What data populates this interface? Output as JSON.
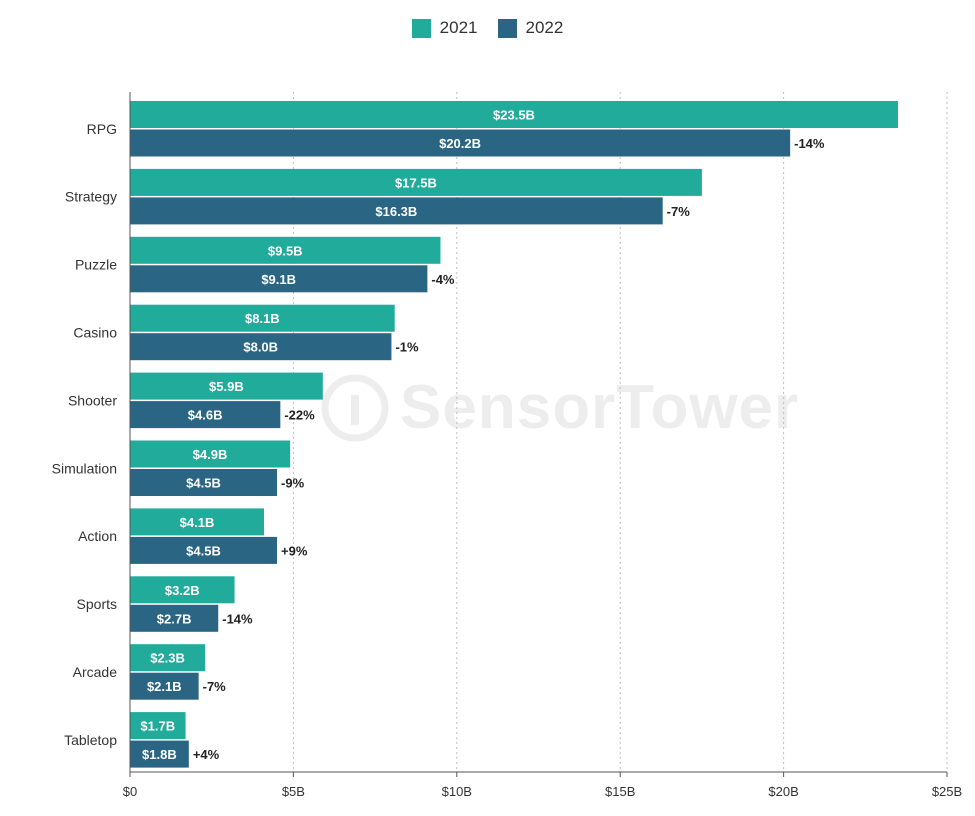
{
  "legend": [
    {
      "label": "2021",
      "color": "#21ab9b"
    },
    {
      "label": "2022",
      "color": "#2a6583"
    }
  ],
  "watermark": "SensorTower",
  "chart_data": {
    "type": "bar",
    "orientation": "horizontal",
    "categories": [
      "RPG",
      "Strategy",
      "Puzzle",
      "Casino",
      "Shooter",
      "Simulation",
      "Action",
      "Sports",
      "Arcade",
      "Tabletop"
    ],
    "series": [
      {
        "name": "2021",
        "color": "#21ab9b",
        "values": [
          23.5,
          17.5,
          9.5,
          8.1,
          5.9,
          4.9,
          4.1,
          3.2,
          2.3,
          1.7
        ],
        "labels": [
          "$23.5B",
          "$17.5B",
          "$9.5B",
          "$8.1B",
          "$5.9B",
          "$4.9B",
          "$4.1B",
          "$3.2B",
          "$2.3B",
          "$1.7B"
        ]
      },
      {
        "name": "2022",
        "color": "#2a6583",
        "values": [
          20.2,
          16.3,
          9.1,
          8.0,
          4.6,
          4.5,
          4.5,
          2.7,
          2.1,
          1.8
        ],
        "labels": [
          "$20.2B",
          "$16.3B",
          "$9.1B",
          "$8.0B",
          "$4.6B",
          "$4.5B",
          "$4.5B",
          "$2.7B",
          "$2.1B",
          "$1.8B"
        ]
      }
    ],
    "change_labels": [
      "-14%",
      "-7%",
      "-4%",
      "-1%",
      "-22%",
      "-9%",
      "+9%",
      "-14%",
      "-7%",
      "+4%"
    ],
    "xlim": [
      0,
      25
    ],
    "xticks": [
      0,
      5,
      10,
      15,
      20,
      25
    ],
    "xtick_labels": [
      "$0",
      "$5B",
      "$10B",
      "$15B",
      "$20B",
      "$25B"
    ],
    "grid": "vertical dashed",
    "legend_position": "top-center"
  }
}
